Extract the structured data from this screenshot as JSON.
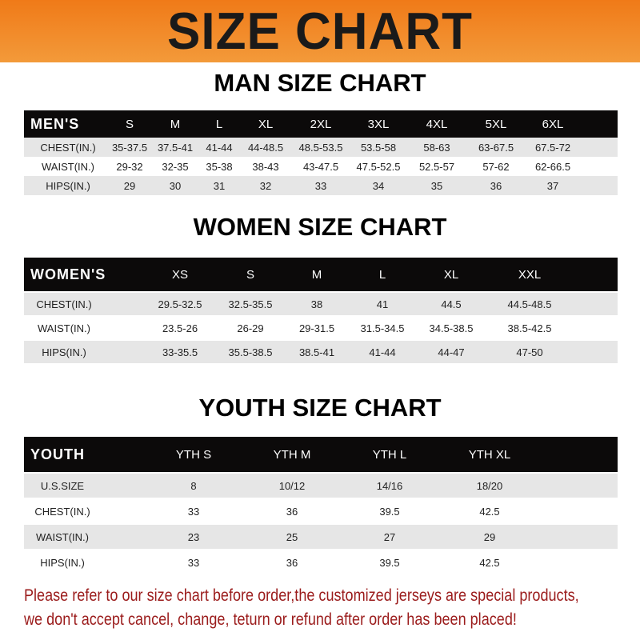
{
  "banner_title": "SIZE CHART",
  "men": {
    "title": "MAN SIZE CHART",
    "header": [
      "MEN'S",
      "S",
      "M",
      "L",
      "XL",
      "2XL",
      "3XL",
      "4XL",
      "5XL",
      "6XL"
    ],
    "rows": [
      [
        "CHEST(IN.)",
        "35-37.5",
        "37.5-41",
        "41-44",
        "44-48.5",
        "48.5-53.5",
        "53.5-58",
        "58-63",
        "63-67.5",
        "67.5-72"
      ],
      [
        "WAIST(IN.)",
        "29-32",
        "32-35",
        "35-38",
        "38-43",
        "43-47.5",
        "47.5-52.5",
        "52.5-57",
        "57-62",
        "62-66.5"
      ],
      [
        "HIPS(IN.)",
        "29",
        "30",
        "31",
        "32",
        "33",
        "34",
        "35",
        "36",
        "37"
      ]
    ]
  },
  "women": {
    "title": "WOMEN SIZE CHART",
    "header": [
      "WOMEN'S",
      "XS",
      "S",
      "M",
      "L",
      "XL",
      "XXL"
    ],
    "rows": [
      [
        "CHEST(IN.)",
        "29.5-32.5",
        "32.5-35.5",
        "38",
        "41",
        "44.5",
        "44.5-48.5"
      ],
      [
        "WAIST(IN.)",
        "23.5-26",
        "26-29",
        "29-31.5",
        "31.5-34.5",
        "34.5-38.5",
        "38.5-42.5"
      ],
      [
        "HIPS(IN.)",
        "33-35.5",
        "35.5-38.5",
        "38.5-41",
        "41-44",
        "44-47",
        "47-50"
      ]
    ]
  },
  "youth": {
    "title": "YOUTH SIZE CHART",
    "header": [
      "YOUTH",
      "YTH S",
      "YTH M",
      "YTH L",
      "YTH XL"
    ],
    "rows": [
      [
        "U.S.SIZE",
        "8",
        "10/12",
        "14/16",
        "18/20"
      ],
      [
        "CHEST(IN.)",
        "33",
        "36",
        "39.5",
        "42.5"
      ],
      [
        "WAIST(IN.)",
        "23",
        "25",
        "27",
        "29"
      ],
      [
        "HIPS(IN.)",
        "33",
        "36",
        "39.5",
        "42.5"
      ]
    ]
  },
  "notice": [
    "Please refer to our size chart before order,the customized jerseys are special products,",
    "we don't accept cancel, change, teturn or refund after order has been placed!"
  ],
  "colors": {
    "banner": "#f07a18",
    "header": "#0c0a0a",
    "notice": "#9b1c1c"
  }
}
